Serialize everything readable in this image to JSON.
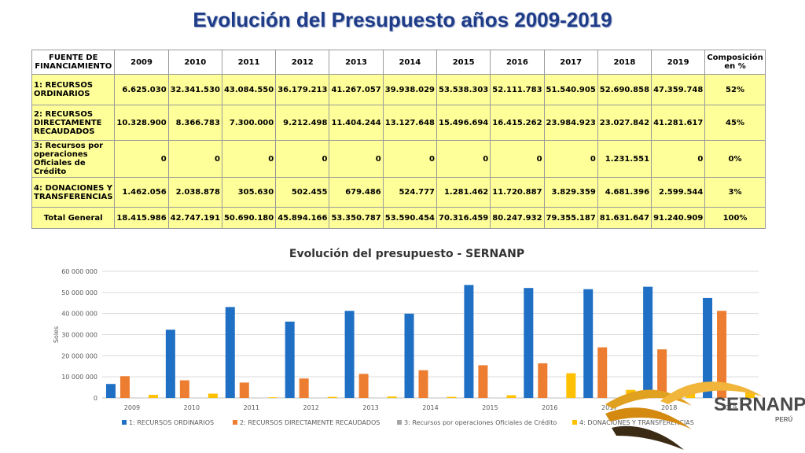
{
  "page_title": "Evolución del Presupuesto años 2009-2019",
  "table": {
    "header_source": "FUENTE DE FINANCIAMIENTO",
    "years": [
      "2009",
      "2010",
      "2011",
      "2012",
      "2013",
      "2014",
      "2015",
      "2016",
      "2017",
      "2018",
      "2019"
    ],
    "header_composition": "Composición en %",
    "rows": [
      {
        "source": "1: RECURSOS ORDINARIOS",
        "values": [
          "6.625.030",
          "32.341.530",
          "43.084.550",
          "36.179.213",
          "41.267.057",
          "39.938.029",
          "53.538.303",
          "52.111.783",
          "51.540.905",
          "52.690.858",
          "47.359.748"
        ],
        "composition": "52%"
      },
      {
        "source": "2: RECURSOS DIRECTAMENTE RECAUDADOS",
        "values": [
          "10.328.900",
          "8.366.783",
          "7.300.000",
          "9.212.498",
          "11.404.244",
          "13.127.648",
          "15.496.694",
          "16.415.262",
          "23.984.923",
          "23.027.842",
          "41.281.617"
        ],
        "composition": "45%"
      },
      {
        "source": "3: Recursos por operaciones Oficiales de Crédito",
        "values": [
          "0",
          "0",
          "0",
          "0",
          "0",
          "0",
          "0",
          "0",
          "0",
          "1.231.551",
          "0"
        ],
        "composition": "0%"
      },
      {
        "source": "4: DONACIONES Y TRANSFERENCIAS",
        "values": [
          "1.462.056",
          "2.038.878",
          "305.630",
          "502.455",
          "679.486",
          "524.777",
          "1.281.462",
          "11.720.887",
          "3.829.359",
          "4.681.396",
          "2.599.544"
        ],
        "composition": "3%"
      }
    ],
    "total": {
      "source": "Total General",
      "values": [
        "18.415.986",
        "42.747.191",
        "50.690.180",
        "45.894.166",
        "53.350.787",
        "53.590.454",
        "70.316.459",
        "80.247.932",
        "79.355.187",
        "81.631.647",
        "91.240.909"
      ],
      "composition": "100%"
    }
  },
  "chart_data": {
    "type": "bar",
    "title": "Evolución del presupuesto - SERNANP",
    "xlabel": "",
    "ylabel": "Soles",
    "ylim": [
      0,
      60000000
    ],
    "yticks": [
      0,
      10000000,
      20000000,
      30000000,
      40000000,
      50000000,
      60000000
    ],
    "ytick_labels": [
      "0",
      "10 000 000",
      "20 000 000",
      "30 000 000",
      "40 000 000",
      "50 000 000",
      "60 000 000"
    ],
    "grid": true,
    "legend_position": "bottom",
    "categories": [
      "2009",
      "2010",
      "2011",
      "2012",
      "2013",
      "2014",
      "2015",
      "2016",
      "2017",
      "2018",
      "2019"
    ],
    "series": [
      {
        "name": "1: RECURSOS ORDINARIOS",
        "color": "#1f6fc5",
        "values": [
          6625030,
          32341530,
          43084550,
          36179213,
          41267057,
          39938029,
          53538303,
          52111783,
          51540905,
          52690858,
          47359748
        ]
      },
      {
        "name": "2: RECURSOS DIRECTAMENTE RECAUDADOS",
        "color": "#ed7d31",
        "values": [
          10328900,
          8366783,
          7300000,
          9212498,
          11404244,
          13127648,
          15496694,
          16415262,
          23984923,
          23027842,
          41281617
        ]
      },
      {
        "name": "3: Recursos por operaciones Oficiales de Crédito",
        "color": "#a5a5a5",
        "values": [
          0,
          0,
          0,
          0,
          0,
          0,
          0,
          0,
          0,
          1231551,
          0
        ]
      },
      {
        "name": "4: DONACIONES Y TRANSFERENCIAS",
        "color": "#ffc000",
        "values": [
          1462056,
          2038878,
          305630,
          502455,
          679486,
          524777,
          1281462,
          11720887,
          3829359,
          4681396,
          2599544
        ]
      }
    ]
  },
  "logo": {
    "name": "SERNANP",
    "sub": "PERÚ"
  }
}
